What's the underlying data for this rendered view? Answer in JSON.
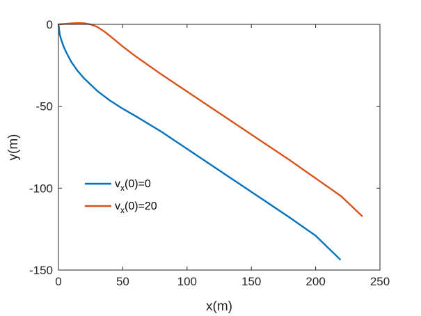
{
  "chart_data": {
    "type": "line",
    "xlabel": "x(m)",
    "ylabel": "y(m)",
    "xlim": [
      0,
      250
    ],
    "ylim": [
      -150,
      0
    ],
    "xticks": [
      0,
      50,
      100,
      150,
      200,
      250
    ],
    "yticks": [
      0,
      -50,
      -100,
      -150
    ],
    "grid": false,
    "box": true,
    "legend_position": "middle-left",
    "series": [
      {
        "name_main": "v",
        "name_sub": "x",
        "name_rest": "(0)=0",
        "color": "#0072BD",
        "x": [
          0,
          1,
          2,
          4,
          6,
          10,
          15,
          20,
          30,
          40,
          50,
          60,
          80,
          100,
          120,
          140,
          160,
          180,
          200,
          219
        ],
        "y": [
          0,
          -6,
          -9,
          -13.5,
          -17,
          -23,
          -28.5,
          -33,
          -40.5,
          -46.5,
          -51.5,
          -56,
          -65.5,
          -76,
          -86.5,
          -97,
          -107.5,
          -118,
          -129,
          -143.5
        ]
      },
      {
        "name_main": "v",
        "name_sub": "x",
        "name_rest": "(0)=20",
        "color": "#D95319",
        "x": [
          0,
          5,
          10,
          15,
          20,
          25,
          30,
          35,
          40,
          50,
          60,
          80,
          100,
          120,
          140,
          160,
          180,
          200,
          220,
          236
        ],
        "y": [
          0,
          0.3,
          0.6,
          0.8,
          0.7,
          0,
          -1.5,
          -4,
          -7,
          -13.5,
          -19.5,
          -30.5,
          -41,
          -51.5,
          -62,
          -72.5,
          -83,
          -94,
          -105,
          -117
        ]
      }
    ]
  }
}
